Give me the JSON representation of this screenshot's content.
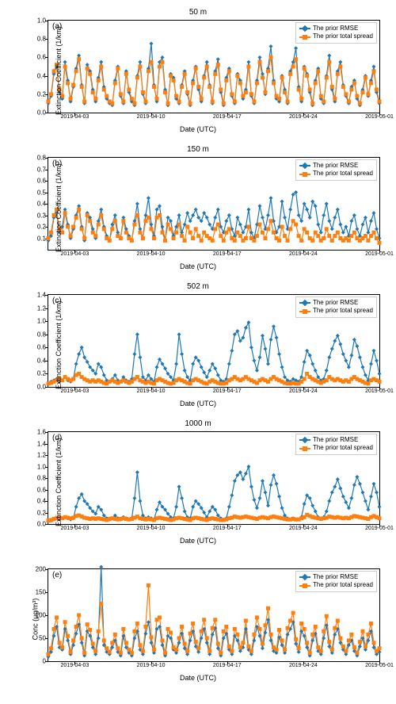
{
  "global": {
    "xlabel": "Date (UTC)",
    "xticks": [
      "2019-04-03",
      "2019-04-10",
      "2019-04-17",
      "2019-04-24",
      "2019-05-01"
    ],
    "xtick_positions": [
      0.08,
      0.31,
      0.54,
      0.77,
      1.0
    ],
    "legend_rmse": "The prior RMSE",
    "legend_spread": "The prior total spread",
    "color_rmse": "#1f77b4",
    "color_spread": "#ff7f0e",
    "line_width": 1.2,
    "marker_size": 2.5
  },
  "charts": [
    {
      "id": "a",
      "title": "50 m",
      "label": "(a)",
      "ylabel": "Extinction Coefficient (1/km)",
      "ylim": [
        0,
        1.0
      ],
      "yticks": [
        0.0,
        0.2,
        0.4,
        0.6,
        0.8,
        1.0
      ],
      "rmse": [
        0.1,
        0.18,
        0.42,
        0.5,
        0.22,
        0.15,
        0.55,
        0.35,
        0.12,
        0.28,
        0.48,
        0.62,
        0.3,
        0.1,
        0.52,
        0.45,
        0.25,
        0.12,
        0.38,
        0.55,
        0.28,
        0.15,
        0.1,
        0.08,
        0.35,
        0.5,
        0.18,
        0.1,
        0.45,
        0.22,
        0.12,
        0.08,
        0.4,
        0.55,
        0.2,
        0.1,
        0.48,
        0.75,
        0.3,
        0.12,
        0.55,
        0.6,
        0.25,
        0.08,
        0.42,
        0.38,
        0.15,
        0.1,
        0.3,
        0.45,
        0.2,
        0.08,
        0.35,
        0.5,
        0.25,
        0.12,
        0.4,
        0.55,
        0.3,
        0.1,
        0.45,
        0.58,
        0.22,
        0.08,
        0.38,
        0.48,
        0.18,
        0.1,
        0.42,
        0.35,
        0.15,
        0.25,
        0.55,
        0.18,
        0.1,
        0.35,
        0.6,
        0.42,
        0.2,
        0.48,
        0.72,
        0.35,
        0.15,
        0.12,
        0.4,
        0.25,
        0.1,
        0.45,
        0.55,
        0.7,
        0.28,
        0.12,
        0.5,
        0.42,
        0.22,
        0.08,
        0.35,
        0.48,
        0.15,
        0.1,
        0.4,
        0.62,
        0.25,
        0.12,
        0.45,
        0.55,
        0.3,
        0.18,
        0.1,
        0.28,
        0.35,
        0.15,
        0.08,
        0.25,
        0.4,
        0.18,
        0.35,
        0.5,
        0.22,
        0.1
      ],
      "spread": [
        0.12,
        0.2,
        0.45,
        0.52,
        0.25,
        0.18,
        0.5,
        0.32,
        0.15,
        0.3,
        0.45,
        0.58,
        0.28,
        0.12,
        0.48,
        0.42,
        0.22,
        0.15,
        0.35,
        0.5,
        0.25,
        0.18,
        0.12,
        0.1,
        0.32,
        0.48,
        0.2,
        0.12,
        0.42,
        0.25,
        0.15,
        0.1,
        0.38,
        0.5,
        0.22,
        0.12,
        0.45,
        0.55,
        0.28,
        0.15,
        0.5,
        0.55,
        0.22,
        0.1,
        0.4,
        0.35,
        0.18,
        0.12,
        0.28,
        0.42,
        0.22,
        0.1,
        0.32,
        0.48,
        0.28,
        0.15,
        0.38,
        0.5,
        0.28,
        0.12,
        0.42,
        0.52,
        0.25,
        0.1,
        0.35,
        0.45,
        0.2,
        0.12,
        0.4,
        0.32,
        0.18,
        0.22,
        0.5,
        0.2,
        0.12,
        0.32,
        0.55,
        0.38,
        0.22,
        0.45,
        0.6,
        0.32,
        0.18,
        0.15,
        0.38,
        0.22,
        0.12,
        0.42,
        0.5,
        0.58,
        0.25,
        0.15,
        0.48,
        0.4,
        0.25,
        0.1,
        0.32,
        0.45,
        0.18,
        0.12,
        0.38,
        0.55,
        0.28,
        0.15,
        0.42,
        0.5,
        0.28,
        0.2,
        0.12,
        0.25,
        0.32,
        0.18,
        0.1,
        0.22,
        0.38,
        0.2,
        0.32,
        0.45,
        0.25,
        0.12
      ]
    },
    {
      "id": "b",
      "title": "150 m",
      "label": "(b)",
      "ylabel": "Extinction Coefficient (1/km)",
      "ylim": [
        0,
        0.8
      ],
      "yticks": [
        0.1,
        0.2,
        0.3,
        0.4,
        0.5,
        0.6,
        0.7,
        0.8
      ],
      "rmse": [
        0.08,
        0.12,
        0.28,
        0.32,
        0.15,
        0.2,
        0.35,
        0.22,
        0.1,
        0.18,
        0.3,
        0.38,
        0.2,
        0.08,
        0.32,
        0.28,
        0.18,
        0.1,
        0.25,
        0.35,
        0.2,
        0.12,
        0.08,
        0.22,
        0.3,
        0.15,
        0.1,
        0.28,
        0.18,
        0.12,
        0.08,
        0.25,
        0.4,
        0.18,
        0.1,
        0.3,
        0.45,
        0.22,
        0.12,
        0.35,
        0.38,
        0.2,
        0.08,
        0.28,
        0.25,
        0.12,
        0.2,
        0.3,
        0.15,
        0.22,
        0.32,
        0.25,
        0.3,
        0.35,
        0.28,
        0.25,
        0.32,
        0.28,
        0.22,
        0.18,
        0.28,
        0.35,
        0.2,
        0.15,
        0.25,
        0.3,
        0.18,
        0.12,
        0.28,
        0.22,
        0.15,
        0.2,
        0.35,
        0.15,
        0.1,
        0.22,
        0.38,
        0.28,
        0.18,
        0.3,
        0.45,
        0.25,
        0.15,
        0.2,
        0.42,
        0.28,
        0.18,
        0.35,
        0.48,
        0.5,
        0.3,
        0.25,
        0.4,
        0.35,
        0.28,
        0.42,
        0.38,
        0.22,
        0.15,
        0.3,
        0.4,
        0.25,
        0.18,
        0.28,
        0.35,
        0.22,
        0.15,
        0.2,
        0.12,
        0.25,
        0.3,
        0.18,
        0.12,
        0.22,
        0.28,
        0.15,
        0.25,
        0.32,
        0.18,
        0.1
      ],
      "spread": [
        0.1,
        0.15,
        0.3,
        0.35,
        0.18,
        0.15,
        0.32,
        0.2,
        0.12,
        0.2,
        0.28,
        0.35,
        0.18,
        0.1,
        0.3,
        0.25,
        0.15,
        0.12,
        0.22,
        0.3,
        0.18,
        0.1,
        0.08,
        0.18,
        0.25,
        0.12,
        0.1,
        0.25,
        0.15,
        0.1,
        0.08,
        0.22,
        0.3,
        0.15,
        0.1,
        0.25,
        0.28,
        0.18,
        0.1,
        0.28,
        0.3,
        0.15,
        0.08,
        0.22,
        0.18,
        0.1,
        0.15,
        0.22,
        0.12,
        0.08,
        0.2,
        0.15,
        0.1,
        0.18,
        0.12,
        0.08,
        0.15,
        0.12,
        0.1,
        0.08,
        0.18,
        0.22,
        0.12,
        0.08,
        0.15,
        0.18,
        0.1,
        0.08,
        0.15,
        0.12,
        0.08,
        0.1,
        0.2,
        0.1,
        0.08,
        0.12,
        0.22,
        0.15,
        0.1,
        0.18,
        0.25,
        0.15,
        0.1,
        0.08,
        0.2,
        0.12,
        0.08,
        0.18,
        0.25,
        0.22,
        0.12,
        0.08,
        0.18,
        0.15,
        0.1,
        0.08,
        0.15,
        0.12,
        0.08,
        0.1,
        0.18,
        0.12,
        0.08,
        0.12,
        0.15,
        0.1,
        0.08,
        0.1,
        0.08,
        0.12,
        0.15,
        0.1,
        0.08,
        0.1,
        0.12,
        0.08,
        0.12,
        0.15,
        0.1,
        0.06
      ]
    },
    {
      "id": "c",
      "title": "502 m",
      "label": "(c)",
      "ylabel": "Extinction Coefficient (1/km)",
      "ylim": [
        0,
        1.4
      ],
      "yticks": [
        0.0,
        0.2,
        0.4,
        0.6,
        0.8,
        1.0,
        1.2,
        1.4
      ],
      "rmse": [
        0.05,
        0.08,
        0.1,
        0.12,
        0.08,
        0.1,
        0.15,
        0.1,
        0.08,
        0.12,
        0.35,
        0.5,
        0.6,
        0.45,
        0.38,
        0.3,
        0.25,
        0.2,
        0.35,
        0.3,
        0.18,
        0.1,
        0.08,
        0.12,
        0.18,
        0.1,
        0.08,
        0.15,
        0.1,
        0.08,
        0.12,
        0.5,
        0.8,
        0.45,
        0.15,
        0.1,
        0.18,
        0.12,
        0.08,
        0.3,
        0.42,
        0.35,
        0.28,
        0.2,
        0.15,
        0.1,
        0.35,
        0.8,
        0.5,
        0.25,
        0.15,
        0.1,
        0.35,
        0.45,
        0.4,
        0.3,
        0.22,
        0.15,
        0.25,
        0.35,
        0.28,
        0.18,
        0.1,
        0.08,
        0.12,
        0.35,
        0.55,
        0.8,
        0.85,
        0.7,
        0.75,
        0.9,
        0.98,
        0.6,
        0.4,
        0.25,
        0.45,
        0.78,
        0.58,
        0.35,
        0.72,
        0.92,
        0.75,
        0.5,
        0.3,
        0.15,
        0.1,
        0.08,
        0.12,
        0.1,
        0.08,
        0.15,
        0.38,
        0.55,
        0.48,
        0.35,
        0.25,
        0.15,
        0.1,
        0.12,
        0.25,
        0.45,
        0.58,
        0.7,
        0.78,
        0.65,
        0.5,
        0.4,
        0.3,
        0.48,
        0.72,
        0.62,
        0.45,
        0.3,
        0.18,
        0.1,
        0.35,
        0.55,
        0.4,
        0.2
      ],
      "spread": [
        0.05,
        0.06,
        0.08,
        0.1,
        0.12,
        0.1,
        0.15,
        0.12,
        0.1,
        0.12,
        0.18,
        0.2,
        0.15,
        0.12,
        0.1,
        0.08,
        0.1,
        0.08,
        0.1,
        0.08,
        0.06,
        0.05,
        0.08,
        0.1,
        0.08,
        0.06,
        0.08,
        0.1,
        0.08,
        0.06,
        0.08,
        0.12,
        0.15,
        0.1,
        0.08,
        0.06,
        0.08,
        0.06,
        0.05,
        0.1,
        0.12,
        0.1,
        0.08,
        0.06,
        0.05,
        0.06,
        0.1,
        0.12,
        0.1,
        0.08,
        0.06,
        0.05,
        0.1,
        0.12,
        0.1,
        0.08,
        0.06,
        0.05,
        0.08,
        0.1,
        0.08,
        0.06,
        0.05,
        0.05,
        0.06,
        0.1,
        0.12,
        0.15,
        0.12,
        0.1,
        0.12,
        0.15,
        0.12,
        0.1,
        0.08,
        0.06,
        0.1,
        0.12,
        0.1,
        0.08,
        0.12,
        0.15,
        0.12,
        0.1,
        0.08,
        0.06,
        0.05,
        0.05,
        0.06,
        0.05,
        0.05,
        0.08,
        0.12,
        0.2,
        0.15,
        0.12,
        0.1,
        0.08,
        0.06,
        0.08,
        0.1,
        0.15,
        0.12,
        0.1,
        0.12,
        0.1,
        0.08,
        0.1,
        0.08,
        0.12,
        0.15,
        0.12,
        0.1,
        0.08,
        0.06,
        0.05,
        0.1,
        0.12,
        0.1,
        0.08
      ]
    },
    {
      "id": "d",
      "title": "1000 m",
      "label": "(d)",
      "ylabel": "Extinction Coefficient (1/km)",
      "ylim": [
        0,
        1.6
      ],
      "yticks": [
        0.0,
        0.2,
        0.4,
        0.6,
        0.8,
        1.0,
        1.2,
        1.4,
        1.6
      ],
      "rmse": [
        0.05,
        0.06,
        0.08,
        0.1,
        0.08,
        0.1,
        0.12,
        0.1,
        0.08,
        0.1,
        0.3,
        0.45,
        0.52,
        0.4,
        0.35,
        0.28,
        0.22,
        0.18,
        0.3,
        0.25,
        0.15,
        0.1,
        0.08,
        0.1,
        0.15,
        0.1,
        0.08,
        0.12,
        0.1,
        0.08,
        0.1,
        0.45,
        0.9,
        0.4,
        0.15,
        0.1,
        0.12,
        0.1,
        0.08,
        0.25,
        0.38,
        0.3,
        0.25,
        0.18,
        0.12,
        0.1,
        0.3,
        0.65,
        0.45,
        0.22,
        0.12,
        0.1,
        0.3,
        0.4,
        0.35,
        0.28,
        0.2,
        0.12,
        0.22,
        0.3,
        0.25,
        0.15,
        0.1,
        0.08,
        0.1,
        0.3,
        0.5,
        0.75,
        0.85,
        0.9,
        0.78,
        0.88,
        1.0,
        0.65,
        0.42,
        0.28,
        0.45,
        0.75,
        0.55,
        0.32,
        0.68,
        0.85,
        0.7,
        0.48,
        0.28,
        0.15,
        0.1,
        0.08,
        0.1,
        0.08,
        0.08,
        0.12,
        0.35,
        0.5,
        0.45,
        0.32,
        0.22,
        0.12,
        0.1,
        0.12,
        0.22,
        0.4,
        0.55,
        0.65,
        0.78,
        0.62,
        0.48,
        0.38,
        0.28,
        0.45,
        0.68,
        0.82,
        0.7,
        0.55,
        0.4,
        0.25,
        0.48,
        0.7,
        0.55,
        0.3
      ],
      "spread": [
        0.06,
        0.07,
        0.09,
        0.1,
        0.11,
        0.1,
        0.12,
        0.11,
        0.1,
        0.11,
        0.14,
        0.15,
        0.13,
        0.11,
        0.1,
        0.09,
        0.1,
        0.09,
        0.1,
        0.09,
        0.08,
        0.07,
        0.09,
        0.1,
        0.09,
        0.08,
        0.09,
        0.1,
        0.09,
        0.08,
        0.09,
        0.11,
        0.13,
        0.1,
        0.09,
        0.08,
        0.09,
        0.08,
        0.07,
        0.1,
        0.11,
        0.1,
        0.09,
        0.08,
        0.07,
        0.08,
        0.1,
        0.11,
        0.1,
        0.09,
        0.08,
        0.07,
        0.1,
        0.11,
        0.1,
        0.09,
        0.08,
        0.07,
        0.09,
        0.1,
        0.09,
        0.08,
        0.07,
        0.07,
        0.08,
        0.1,
        0.11,
        0.13,
        0.12,
        0.11,
        0.12,
        0.13,
        0.12,
        0.11,
        0.1,
        0.09,
        0.11,
        0.12,
        0.11,
        0.1,
        0.12,
        0.13,
        0.12,
        0.11,
        0.1,
        0.09,
        0.08,
        0.08,
        0.09,
        0.08,
        0.08,
        0.1,
        0.12,
        0.16,
        0.14,
        0.12,
        0.11,
        0.1,
        0.09,
        0.1,
        0.11,
        0.13,
        0.12,
        0.11,
        0.12,
        0.11,
        0.1,
        0.11,
        0.1,
        0.12,
        0.14,
        0.13,
        0.12,
        0.11,
        0.1,
        0.09,
        0.12,
        0.14,
        0.12,
        0.1
      ]
    },
    {
      "id": "e",
      "title": "",
      "label": "(e)",
      "ylabel": "Conc (μg/m³)",
      "ylim": [
        0,
        200
      ],
      "yticks": [
        0,
        50,
        100,
        150,
        200
      ],
      "rmse": [
        10,
        20,
        55,
        75,
        30,
        25,
        70,
        45,
        15,
        35,
        60,
        80,
        40,
        12,
        65,
        55,
        30,
        15,
        50,
        205,
        35,
        20,
        15,
        30,
        45,
        20,
        12,
        55,
        30,
        18,
        12,
        50,
        65,
        25,
        15,
        60,
        85,
        40,
        18,
        70,
        75,
        35,
        12,
        55,
        50,
        25,
        18,
        40,
        60,
        28,
        15,
        45,
        65,
        32,
        20,
        50,
        70,
        40,
        15,
        58,
        72,
        28,
        12,
        50,
        60,
        25,
        15,
        55,
        45,
        22,
        30,
        70,
        25,
        15,
        45,
        75,
        55,
        28,
        62,
        90,
        45,
        22,
        18,
        52,
        35,
        18,
        58,
        70,
        85,
        38,
        20,
        65,
        55,
        30,
        12,
        45,
        60,
        22,
        15,
        50,
        78,
        32,
        18,
        58,
        70,
        40,
        25,
        15,
        35,
        45,
        22,
        12,
        32,
        50,
        25,
        45,
        65,
        30,
        15,
        20
      ],
      "spread": [
        15,
        28,
        70,
        95,
        40,
        30,
        85,
        55,
        20,
        45,
        75,
        100,
        50,
        18,
        80,
        68,
        38,
        22,
        65,
        125,
        45,
        28,
        20,
        40,
        58,
        28,
        18,
        70,
        40,
        25,
        18,
        65,
        82,
        35,
        22,
        75,
        165,
        52,
        25,
        90,
        95,
        45,
        18,
        70,
        62,
        30,
        25,
        50,
        75,
        38,
        22,
        60,
        82,
        42,
        28,
        65,
        90,
        50,
        22,
        72,
        90,
        38,
        18,
        65,
        75,
        32,
        22,
        70,
        58,
        30,
        40,
        88,
        32,
        22,
        58,
        95,
        70,
        38,
        78,
        115,
        58,
        30,
        25,
        68,
        45,
        25,
        72,
        88,
        105,
        48,
        28,
        82,
        70,
        40,
        18,
        58,
        75,
        30,
        22,
        65,
        98,
        42,
        25,
        72,
        88,
        50,
        32,
        22,
        45,
        58,
        30,
        18,
        42,
        65,
        32,
        58,
        82,
        40,
        22,
        28
      ]
    }
  ]
}
